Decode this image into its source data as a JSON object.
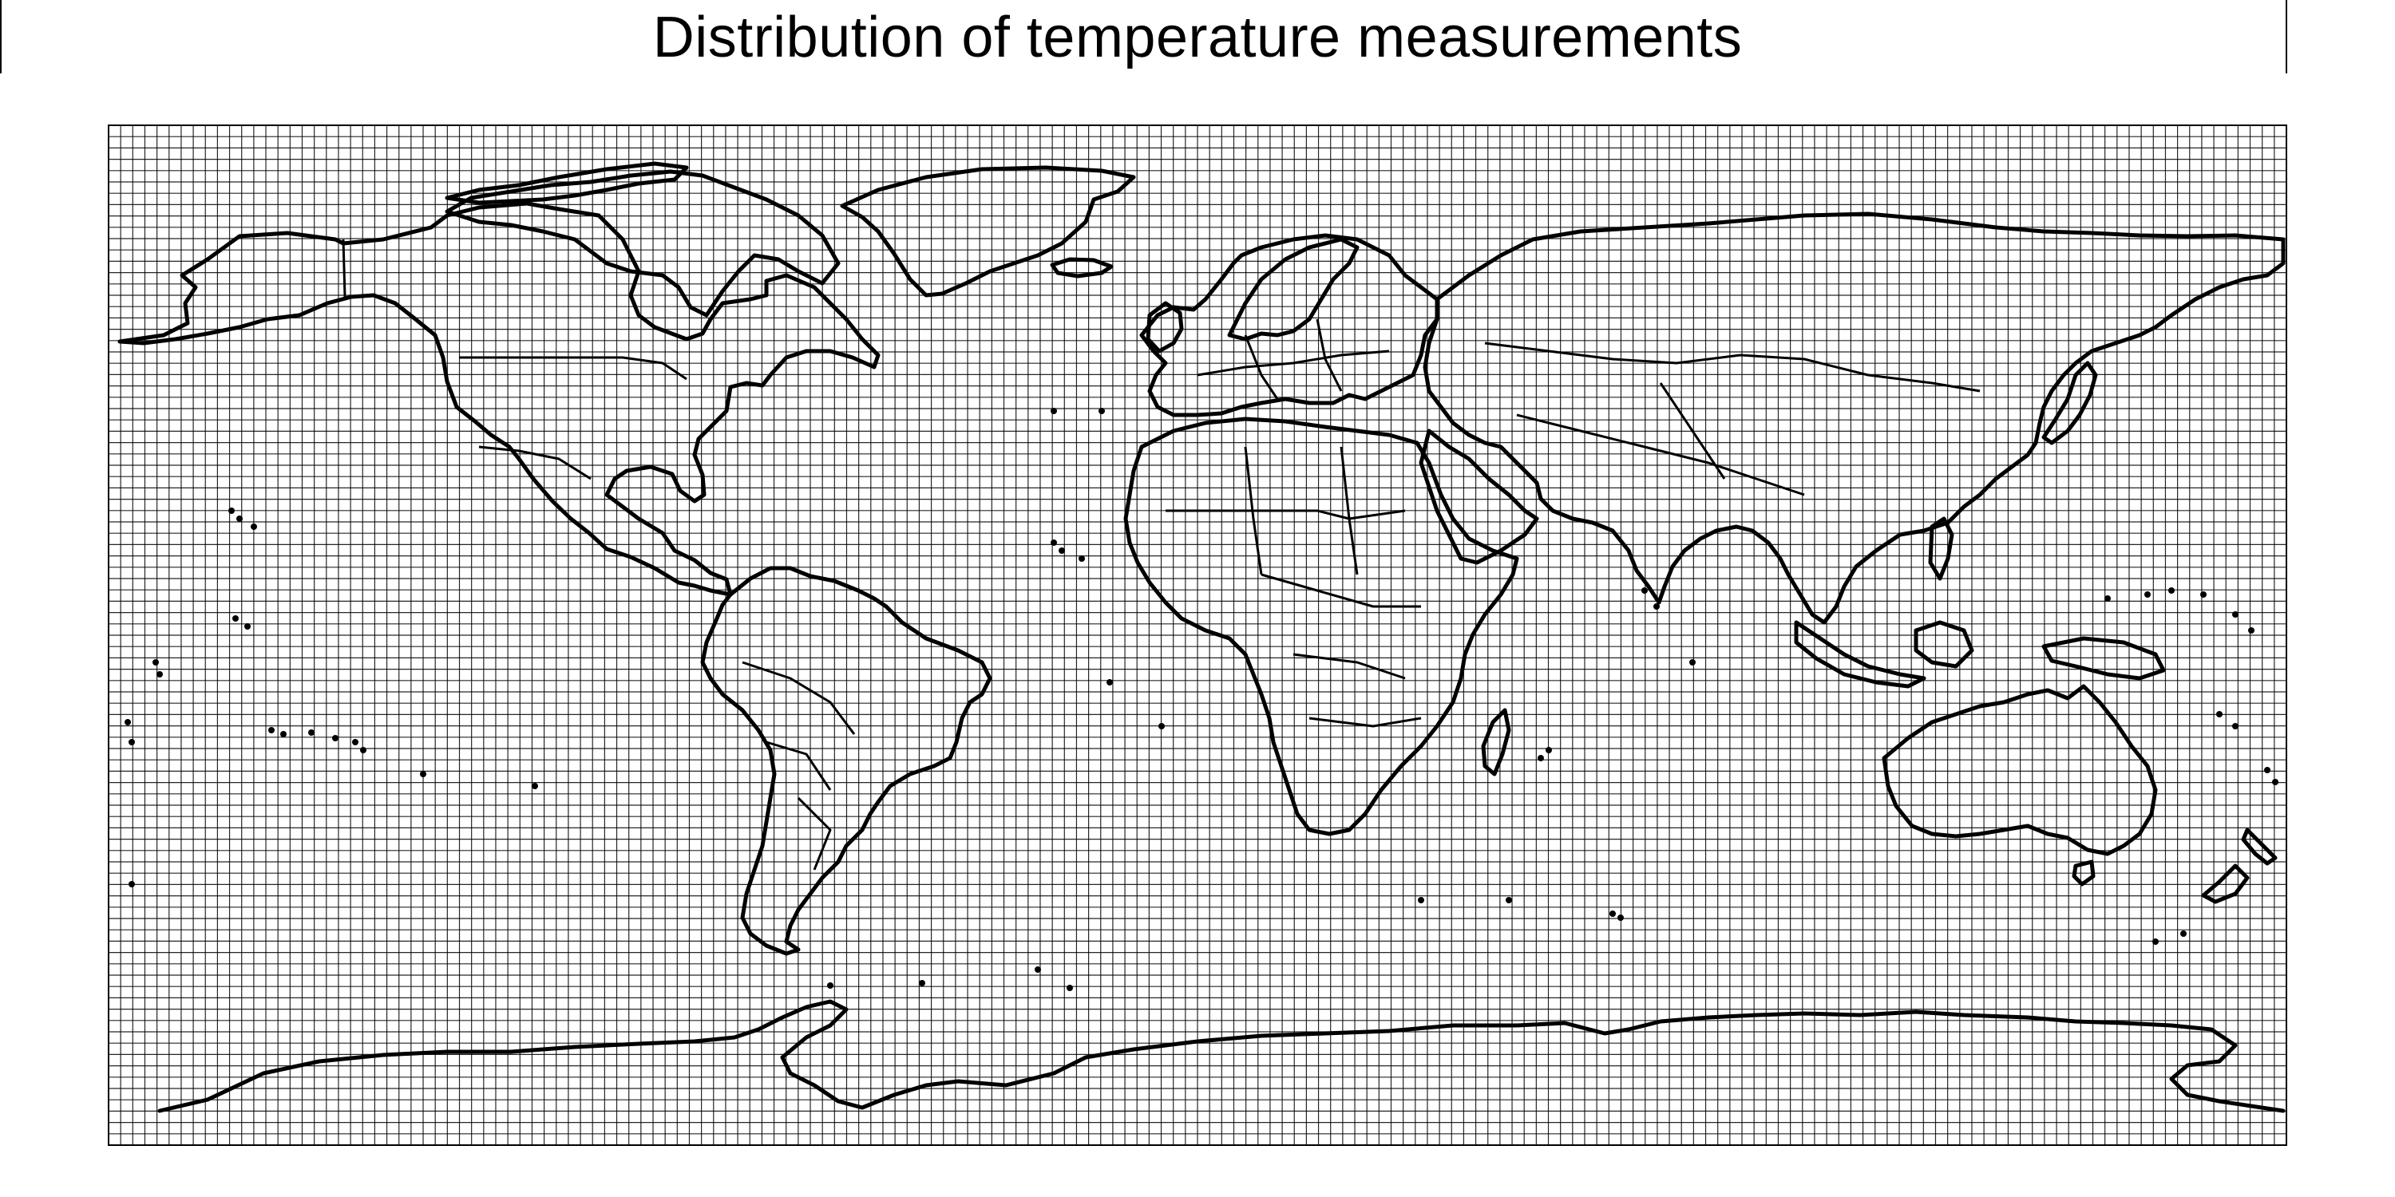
{
  "title": "Distribution of temperature measurements",
  "map": {
    "projection": "equirectangular",
    "extent": {
      "lon": [
        -180,
        180
      ],
      "lat": [
        -90,
        90
      ]
    },
    "grid": {
      "visible": true,
      "cell_degrees": 2,
      "line_color": "#000000",
      "background": "#ffffff"
    },
    "coastline_color": "#000000",
    "layers": [
      "grid",
      "coastlines",
      "country-borders"
    ]
  }
}
